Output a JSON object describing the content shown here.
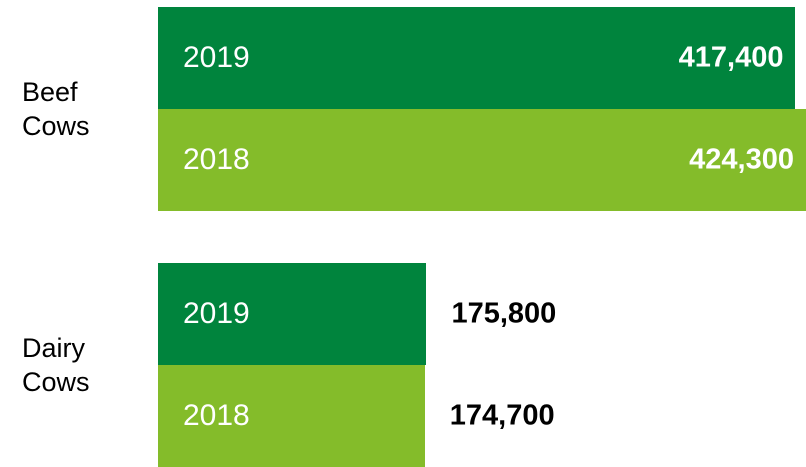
{
  "chart_data": {
    "type": "bar",
    "orientation": "horizontal",
    "categories": [
      "Beef Cows",
      "Dairy Cows"
    ],
    "series": [
      {
        "name": "2019",
        "color": "#00843d",
        "values": [
          417400,
          175800
        ],
        "value_labels": [
          "417,400",
          "175,800"
        ]
      },
      {
        "name": "2018",
        "color": "#84bc2a",
        "values": [
          424300,
          174700
        ],
        "value_labels": [
          "424,300",
          "174,700"
        ]
      }
    ]
  }
}
